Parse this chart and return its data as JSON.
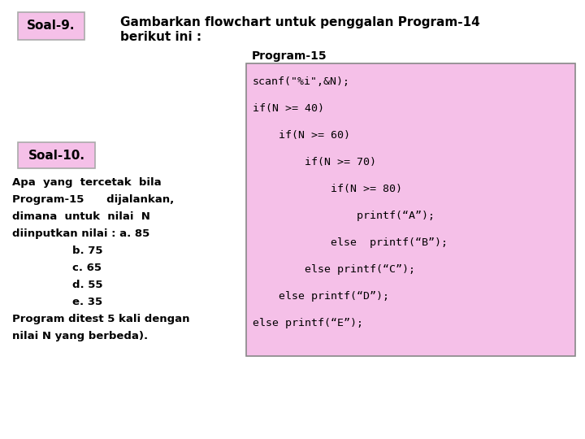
{
  "bg_color": "#ffffff",
  "soal9_label": "Soal-9.",
  "soal9_bg": "#f5c0e8",
  "title_line1": "Gambarkan flowchart untuk penggalan Program-14",
  "title_line2": "berikut ini :",
  "program_label": "Program-15",
  "code_bg": "#f5c0e8",
  "code_lines": [
    "scanf(\"%i\",&N);",
    "if(N >= 40)",
    "    if(N >= 60)",
    "        if(N >= 70)",
    "            if(N >= 80)",
    "                printf(“A”);",
    "            else  printf(“B”);",
    "        else printf(“C”);",
    "    else printf(“D”);",
    "else printf(“E”);"
  ],
  "soal10_label": "Soal-10.",
  "soal10_bg": "#f5c0e8",
  "left_text": "Apa  yang  tercetak  bila\nProgram-15      dijalankan,\ndimana  untuk  nilai  N\ndiinputkan nilai : a. 85\n                b. 75\n                c. 65\n                d. 55\n                e. 35\nProgram ditest 5 kali dengan\nnilai N yang berbeda)."
}
